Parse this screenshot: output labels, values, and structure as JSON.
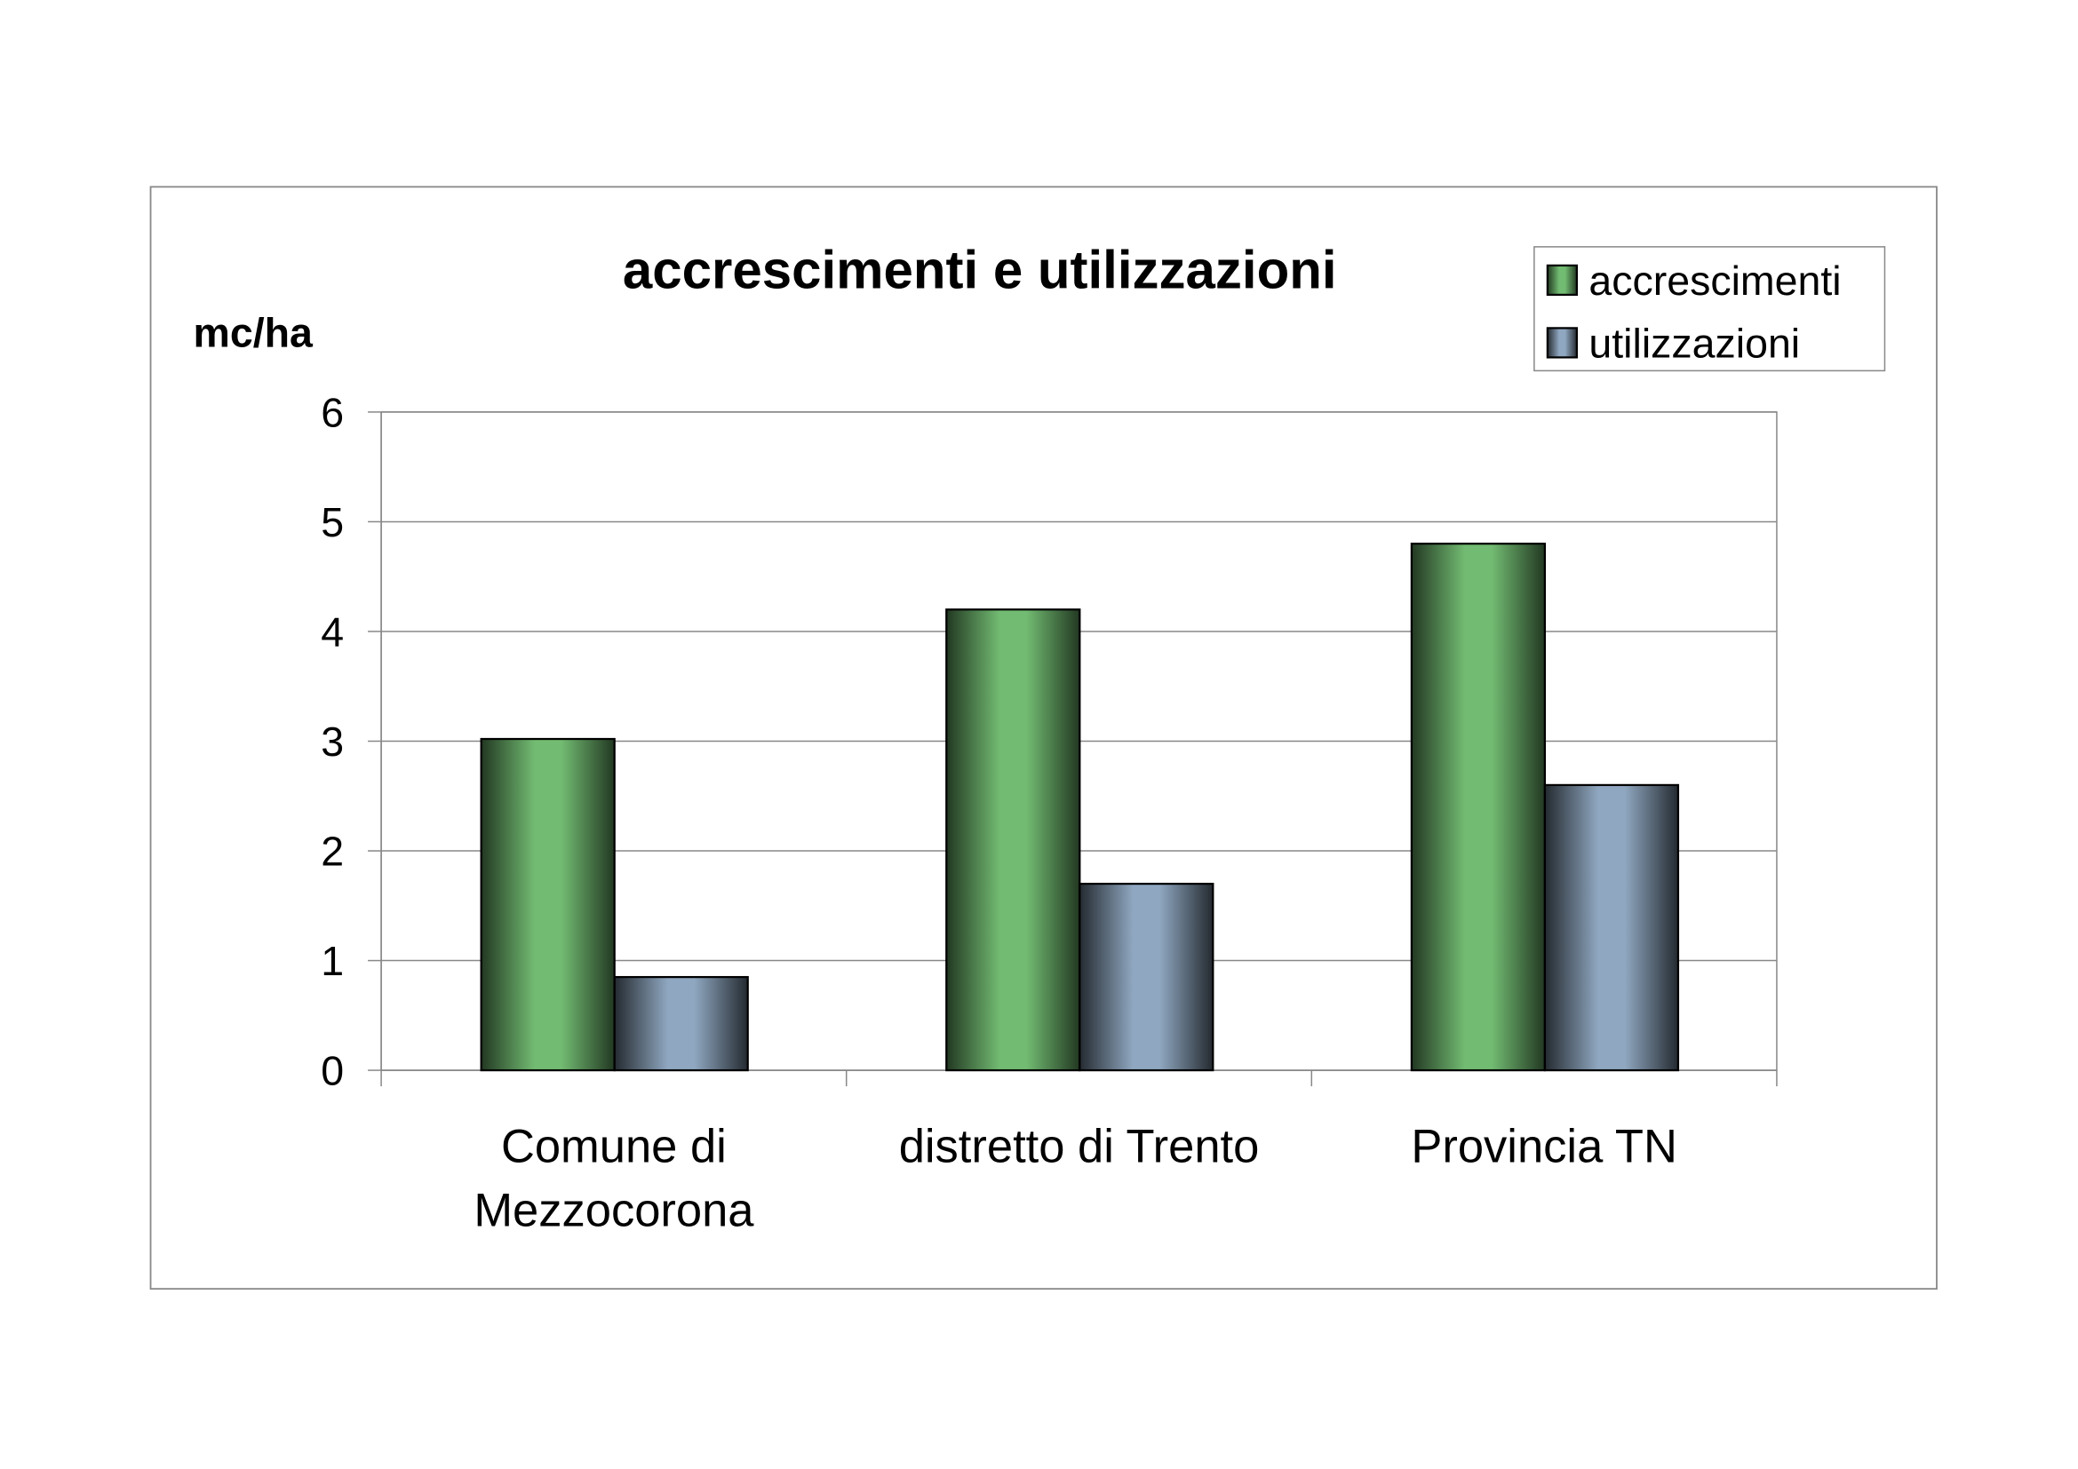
{
  "chart_data": {
    "type": "bar",
    "title": "accrescimenti e utilizzazioni",
    "y_label": "mc/ha",
    "categories": [
      "Comune di\nMezzocorona",
      "distretto di Trento",
      "Provincia TN"
    ],
    "series": [
      {
        "name": "accrescimenti",
        "color": "#72bb72",
        "values": [
          3.02,
          4.2,
          4.8
        ]
      },
      {
        "name": "utilizzazioni",
        "color": "#8fa7c0",
        "values": [
          0.85,
          1.7,
          2.6
        ]
      }
    ],
    "ylim": [
      0,
      6
    ],
    "yticks": [
      0,
      1,
      2,
      3,
      4,
      5,
      6
    ],
    "grid": true,
    "legend": "top-right"
  }
}
